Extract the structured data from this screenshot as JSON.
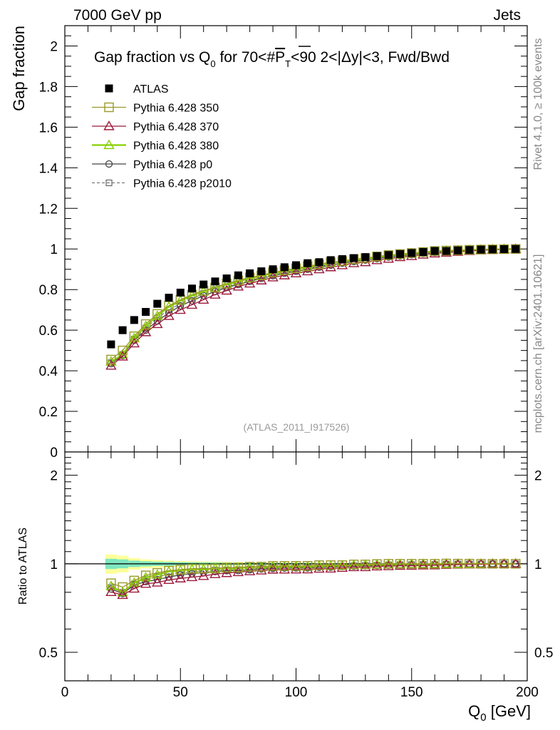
{
  "header": {
    "left": "7000 GeV pp",
    "right": "Jets"
  },
  "side_labels": {
    "top": "Rivet 4.1.0, ≥ 100k events",
    "bottom": "mcplots.cern.ch [arXiv:2401.10621]"
  },
  "watermark": "(ATLAS_2011_I917526)",
  "colors": {
    "atlas": "#000000",
    "p350": "#9a9a2a",
    "p370": "#9b1a3c",
    "p380": "#88d000",
    "p0": "#444444",
    "p2010": "#666666",
    "band_inner": "#7fe7c0",
    "band_outer": "#ffff99"
  },
  "chart_data": {
    "type": "scatter",
    "title_parts": {
      "pre": "Gap fraction vs Q",
      "sub0": "0",
      "mid": " for 70<#",
      "p": "P",
      "subT": "T",
      "post": "<90  2<|Δy|<3, Fwd/Bwd"
    },
    "xlabel": {
      "main": "Q",
      "sub": "0",
      "unit": " [GeV]"
    },
    "ylabel_main": "Gap fraction",
    "ylabel_ratio": "Ratio to ATLAS",
    "xlim": [
      0,
      200
    ],
    "ylim_main": [
      0,
      2.1
    ],
    "ylim_ratio": [
      0.4,
      2.4
    ],
    "x_ticks": [
      "0",
      "50",
      "100",
      "150",
      "200"
    ],
    "y_ticks_main": [
      "0",
      "0.2",
      "0.4",
      "0.6",
      "0.8",
      "1",
      "1.2",
      "1.4",
      "1.6",
      "1.8",
      "2"
    ],
    "y_ticks_ratio": [
      "0.5",
      "1",
      "2"
    ],
    "y_ticks_ratio_right": [
      "0.5",
      "1",
      "2"
    ],
    "x": [
      20,
      25,
      30,
      35,
      40,
      45,
      50,
      55,
      60,
      65,
      70,
      75,
      80,
      85,
      90,
      95,
      100,
      105,
      110,
      115,
      120,
      125,
      130,
      135,
      140,
      145,
      150,
      155,
      160,
      165,
      170,
      175,
      180,
      185,
      190,
      195
    ],
    "legend": [
      {
        "key": "atlas",
        "label": "ATLAS"
      },
      {
        "key": "p350",
        "label": "Pythia 6.428 350"
      },
      {
        "key": "p370",
        "label": "Pythia 6.428 370"
      },
      {
        "key": "p380",
        "label": "Pythia 6.428 380"
      },
      {
        "key": "p0",
        "label": "Pythia 6.428 p0"
      },
      {
        "key": "p2010",
        "label": "Pythia 6.428 p2010"
      }
    ],
    "series": [
      {
        "key": "atlas",
        "name": "ATLAS",
        "values": [
          0.53,
          0.6,
          0.65,
          0.69,
          0.73,
          0.76,
          0.785,
          0.805,
          0.825,
          0.84,
          0.855,
          0.87,
          0.88,
          0.89,
          0.9,
          0.91,
          0.92,
          0.93,
          0.935,
          0.945,
          0.95,
          0.955,
          0.96,
          0.965,
          0.97,
          0.975,
          0.98,
          0.985,
          0.99,
          0.99,
          0.993,
          0.995,
          0.997,
          0.998,
          0.999,
          1.0
        ]
      },
      {
        "key": "p350",
        "name": "Pythia 6.428 350",
        "values": [
          0.455,
          0.5,
          0.57,
          0.63,
          0.68,
          0.72,
          0.75,
          0.775,
          0.795,
          0.81,
          0.83,
          0.845,
          0.86,
          0.87,
          0.885,
          0.895,
          0.905,
          0.915,
          0.925,
          0.935,
          0.94,
          0.95,
          0.955,
          0.963,
          0.97,
          0.975,
          0.98,
          0.985,
          0.99,
          0.992,
          0.994,
          0.996,
          0.997,
          0.998,
          0.999,
          1.0
        ]
      },
      {
        "key": "p370",
        "name": "Pythia 6.428 370",
        "values": [
          0.425,
          0.47,
          0.535,
          0.59,
          0.63,
          0.67,
          0.7,
          0.725,
          0.75,
          0.775,
          0.795,
          0.815,
          0.83,
          0.845,
          0.86,
          0.87,
          0.88,
          0.89,
          0.9,
          0.91,
          0.92,
          0.93,
          0.935,
          0.945,
          0.952,
          0.96,
          0.965,
          0.972,
          0.978,
          0.982,
          0.986,
          0.99,
          0.993,
          0.996,
          0.998,
          1.0
        ]
      },
      {
        "key": "p380",
        "name": "Pythia 6.428 380",
        "values": [
          0.445,
          0.48,
          0.56,
          0.62,
          0.67,
          0.715,
          0.745,
          0.77,
          0.79,
          0.81,
          0.825,
          0.84,
          0.855,
          0.868,
          0.88,
          0.89,
          0.9,
          0.91,
          0.92,
          0.93,
          0.938,
          0.946,
          0.953,
          0.96,
          0.966,
          0.972,
          0.978,
          0.983,
          0.988,
          0.991,
          0.993,
          0.995,
          0.997,
          0.998,
          0.999,
          1.0
        ]
      },
      {
        "key": "p0",
        "name": "Pythia 6.428 p0",
        "values": [
          0.435,
          0.475,
          0.55,
          0.6,
          0.645,
          0.685,
          0.72,
          0.745,
          0.77,
          0.79,
          0.81,
          0.825,
          0.84,
          0.855,
          0.868,
          0.88,
          0.89,
          0.9,
          0.91,
          0.92,
          0.93,
          0.938,
          0.945,
          0.952,
          0.96,
          0.966,
          0.972,
          0.978,
          0.983,
          0.987,
          0.99,
          0.993,
          0.995,
          0.997,
          0.999,
          1.0
        ]
      },
      {
        "key": "p2010",
        "name": "Pythia 6.428 p2010",
        "values": [
          0.44,
          0.48,
          0.555,
          0.61,
          0.66,
          0.7,
          0.73,
          0.755,
          0.78,
          0.8,
          0.815,
          0.83,
          0.845,
          0.86,
          0.872,
          0.884,
          0.894,
          0.904,
          0.914,
          0.924,
          0.932,
          0.94,
          0.948,
          0.955,
          0.962,
          0.968,
          0.974,
          0.98,
          0.985,
          0.988,
          0.991,
          0.994,
          0.996,
          0.998,
          0.999,
          1.0
        ]
      }
    ],
    "ratio_band": {
      "inner": [
        0.04,
        0.035,
        0.025,
        0.02,
        0.017,
        0.015,
        0.013,
        0.012,
        0.011,
        0.01,
        0.009,
        0.008,
        0.008,
        0.007,
        0.007,
        0.006,
        0.006,
        0.006,
        0.005,
        0.005,
        0.005,
        0.005,
        0.004,
        0.004,
        0.004,
        0.004,
        0.004,
        0.003,
        0.003,
        0.003,
        0.003,
        0.003,
        0.003,
        0.003,
        0.003,
        0.003
      ],
      "outer": [
        0.075,
        0.065,
        0.045,
        0.035,
        0.03,
        0.025,
        0.022,
        0.02,
        0.018,
        0.016,
        0.015,
        0.013,
        0.012,
        0.011,
        0.01,
        0.009,
        0.009,
        0.008,
        0.008,
        0.007,
        0.007,
        0.006,
        0.006,
        0.006,
        0.005,
        0.005,
        0.005,
        0.005,
        0.004,
        0.004,
        0.004,
        0.004,
        0.004,
        0.004,
        0.004,
        0.004
      ]
    }
  }
}
